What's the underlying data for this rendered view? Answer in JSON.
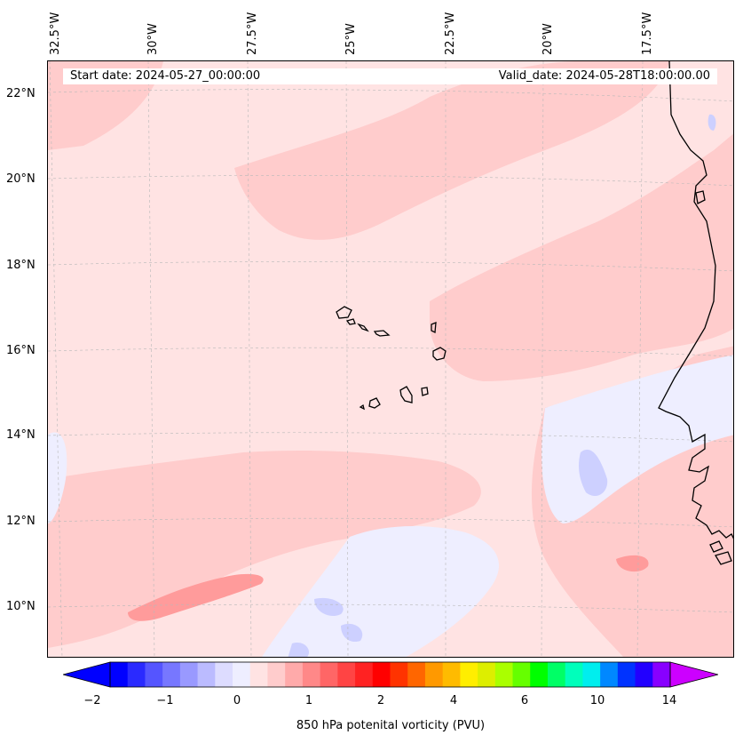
{
  "map": {
    "start_label": "Start date: 2024-05-27_00:00:00",
    "valid_label": "Valid_date: 2024-05-28T18:00:00.00",
    "lon_labels": [
      "32.5°W",
      "30°W",
      "27.5°W",
      "25°W",
      "22.5°W",
      "20°W",
      "17.5°W"
    ],
    "lat_labels": [
      "22°N",
      "20°N",
      "18°N",
      "16°N",
      "14°N",
      "12°N",
      "10°N"
    ],
    "colors": {
      "background": "#ffe3e3",
      "pink": "#ffcccc",
      "rose": "#ff9b9b",
      "light_blue": "#eeeeff",
      "blue": "#cdd0ff",
      "coast": "#000000"
    }
  },
  "colorbar": {
    "title": "850 hPa potenital vorticity (PVU)",
    "ticks": [
      "−2",
      "−1",
      "0",
      "1",
      "2",
      "4",
      "6",
      "10",
      "14"
    ],
    "colors": [
      "#0000ff",
      "#2a2aff",
      "#5555ff",
      "#7777ff",
      "#9999ff",
      "#bbbbff",
      "#dddcff",
      "#eeeeff",
      "#ffe3e3",
      "#ffcccc",
      "#ffaaaa",
      "#ff8888",
      "#ff6666",
      "#ff4444",
      "#ff2222",
      "#ff0000",
      "#ff3300",
      "#ff6600",
      "#ff9900",
      "#ffbb00",
      "#ffee00",
      "#ddee00",
      "#aaff00",
      "#66ff00",
      "#00ff00",
      "#00ff66",
      "#00ffbb",
      "#00eeee",
      "#0088ff",
      "#0033ff",
      "#2200ff",
      "#8800ff"
    ],
    "over_color": "#cc00ff",
    "under_color": "#0000ff"
  }
}
